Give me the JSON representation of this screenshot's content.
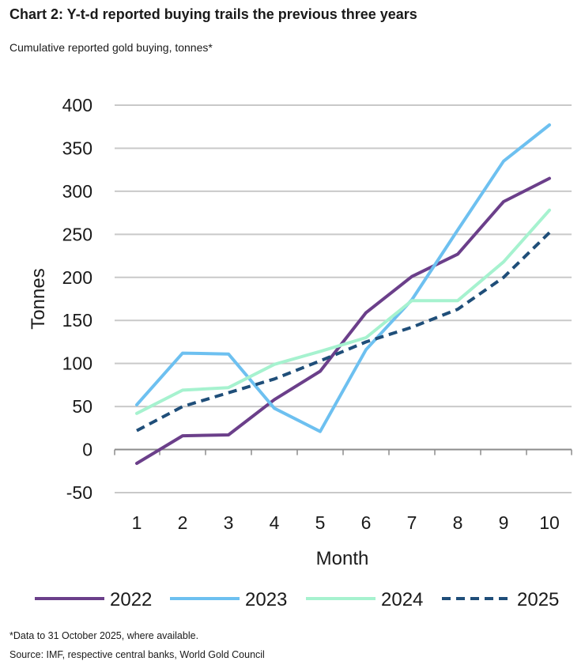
{
  "header": {
    "title": "Chart 2: Y-t-d reported buying trails the previous three years",
    "subtitle": "Cumulative reported gold buying, tonnes*"
  },
  "footer": {
    "note": "*Data to 31 October 2025, where available.",
    "source": "Source: IMF, respective central banks, World Gold Council"
  },
  "chart_data": {
    "type": "line",
    "title": "Chart 2: Y-t-d reported buying trails the previous three years",
    "subtitle": "Cumulative reported gold buying, tonnes*",
    "xlabel": "Month",
    "ylabel": "Tonnes",
    "categories": [
      "1",
      "2",
      "3",
      "4",
      "5",
      "6",
      "7",
      "8",
      "9",
      "10"
    ],
    "ylim": [
      -50,
      400
    ],
    "yticks": [
      -50,
      0,
      50,
      100,
      150,
      200,
      250,
      300,
      350,
      400
    ],
    "ytick_labels": [
      "-50",
      "0",
      "50",
      "100",
      "150",
      "200",
      "250",
      "300",
      "350",
      "400"
    ],
    "grid": true,
    "legend_position": "bottom",
    "series": [
      {
        "name": "2022",
        "color": "#6b3f8a",
        "style": "solid",
        "values": [
          -16,
          16,
          17,
          58,
          91,
          159,
          201,
          227,
          288,
          315
        ]
      },
      {
        "name": "2023",
        "color": "#6dc0f0",
        "style": "solid",
        "values": [
          52,
          112,
          111,
          48,
          21,
          116,
          174,
          255,
          335,
          377
        ]
      },
      {
        "name": "2024",
        "color": "#a6f2cf",
        "style": "solid",
        "values": [
          42,
          69,
          72,
          99,
          114,
          130,
          173,
          173,
          218,
          278
        ]
      },
      {
        "name": "2025",
        "color": "#1f4e79",
        "style": "dashed",
        "values": [
          22,
          50,
          66,
          82,
          103,
          125,
          142,
          163,
          200,
          252
        ]
      }
    ]
  }
}
